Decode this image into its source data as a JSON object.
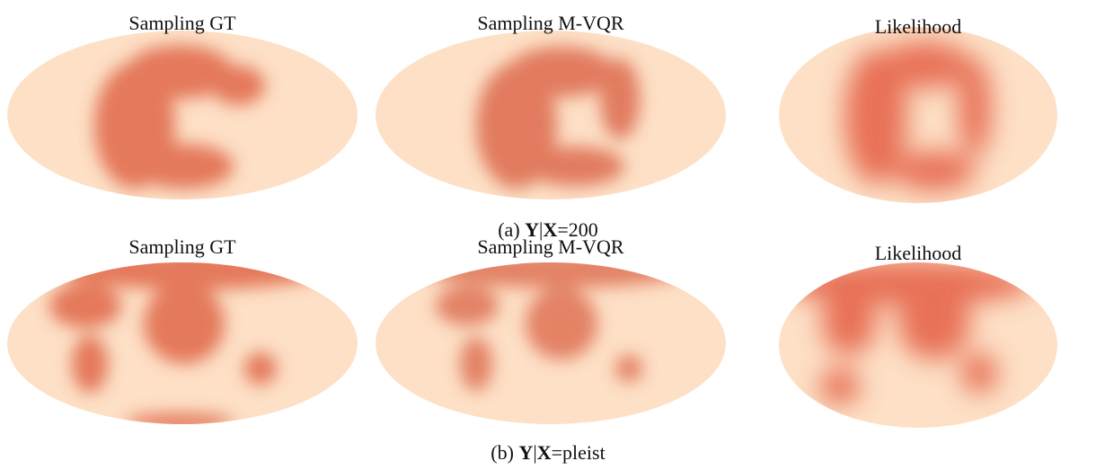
{
  "rows": [
    {
      "panels": [
        "Sampling GT",
        "Sampling M-VQR",
        "Likelihood"
      ],
      "caption": {
        "label": "(a)",
        "var": "Y",
        "sep": "|",
        "cond": "X",
        "value": "=200"
      }
    },
    {
      "panels": [
        "Sampling GT",
        "Sampling M-VQR",
        "Likelihood"
      ],
      "caption": {
        "label": "(b)",
        "var": "Y",
        "sep": "|",
        "cond": "X",
        "value": "=pleist"
      }
    }
  ]
}
